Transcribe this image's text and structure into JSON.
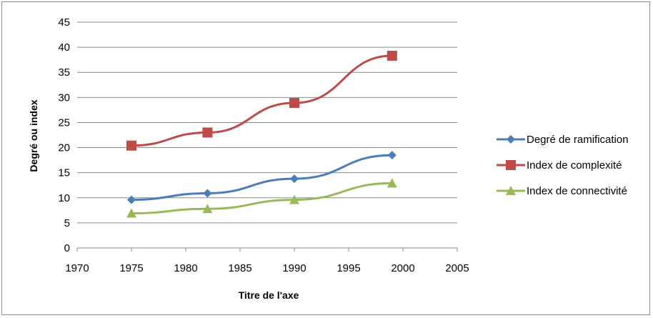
{
  "chart_data": {
    "type": "line",
    "title": "",
    "xlabel": "Titre de l'axe",
    "ylabel": "Degré ou index",
    "xlim": [
      1970,
      2005
    ],
    "ylim": [
      0,
      45
    ],
    "x_ticks": [
      "1970",
      "1975",
      "1980",
      "1985",
      "1990",
      "1995",
      "2000",
      "2005"
    ],
    "y_ticks": [
      "0",
      "5",
      "10",
      "15",
      "20",
      "25",
      "30",
      "35",
      "40",
      "45"
    ],
    "grid": "horizontal",
    "legend_position": "right",
    "series": [
      {
        "name": "Degré de ramification",
        "color": "#4a7ebb",
        "marker": "diamond",
        "x": [
          1975,
          1982,
          1990,
          1999
        ],
        "y": [
          9.6,
          10.9,
          13.8,
          18.5
        ]
      },
      {
        "name": "Index de complexité",
        "color": "#be4b48",
        "marker": "square",
        "x": [
          1975,
          1982,
          1990,
          1999
        ],
        "y": [
          20.4,
          23.0,
          28.9,
          38.3
        ]
      },
      {
        "name": "Index de connectivité",
        "color": "#98b954",
        "marker": "triangle",
        "x": [
          1975,
          1982,
          1990,
          1999
        ],
        "y": [
          6.9,
          7.8,
          9.6,
          12.9
        ]
      }
    ]
  }
}
